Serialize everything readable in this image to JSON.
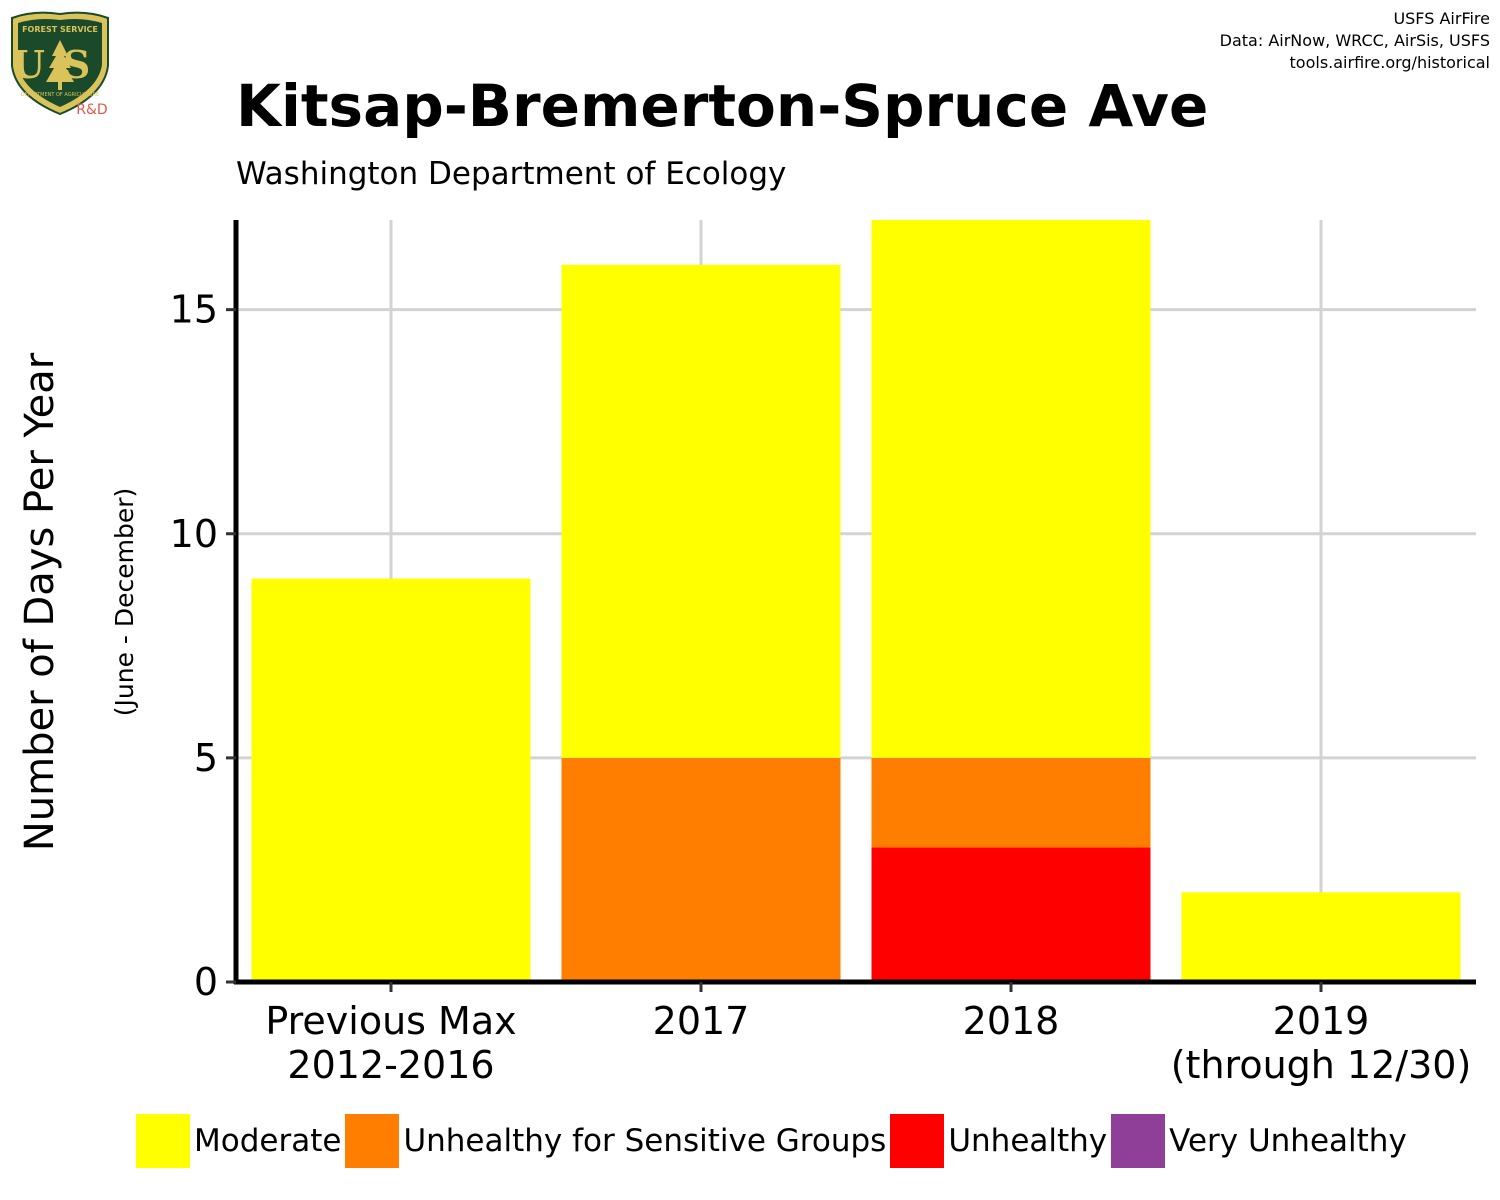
{
  "header": {
    "logo": {
      "text_top": "FOREST SERVICE",
      "letters": "US",
      "text_bottom": "DEPARTMENT OF AGRICULTURE",
      "badge": "R&D",
      "colors": {
        "shield": "#1a4a2a",
        "rim": "#d9c35a",
        "badge": "#e05a4a"
      }
    },
    "credits": [
      "USFS AirFire",
      "Data: AirNow, WRCC, AirSis, USFS",
      "tools.airfire.org/historical"
    ]
  },
  "chart_data": {
    "type": "bar",
    "stacked": true,
    "title": "Kitsap-Bremerton-Spruce Ave",
    "subtitle": "Washington Department of Ecology",
    "ylabel": "Number of Days Per Year",
    "ylabel_sub": "(June - December)",
    "xlabel": "",
    "ylim": [
      0,
      17
    ],
    "yticks": [
      0,
      5,
      10,
      15
    ],
    "grid": true,
    "legend_position": "bottom",
    "categories": [
      [
        "Previous Max",
        "2012-2016"
      ],
      [
        "2017"
      ],
      [
        "2018"
      ],
      [
        "2019",
        "(through 12/30)"
      ]
    ],
    "series": [
      {
        "name": "Unhealthy",
        "color": "#ff0000",
        "values": [
          0,
          0,
          3,
          0
        ]
      },
      {
        "name": "Unhealthy for Sensitive Groups",
        "color": "#ff7e00",
        "values": [
          0,
          5,
          2,
          0
        ]
      },
      {
        "name": "Moderate",
        "color": "#ffff00",
        "values": [
          9,
          11,
          12,
          2
        ]
      }
    ],
    "legend": [
      {
        "name": "Moderate",
        "color": "#ffff00"
      },
      {
        "name": "Unhealthy for Sensitive Groups",
        "color": "#ff7e00"
      },
      {
        "name": "Unhealthy",
        "color": "#ff0000"
      },
      {
        "name": "Very Unhealthy",
        "color": "#8f3f97"
      }
    ]
  }
}
